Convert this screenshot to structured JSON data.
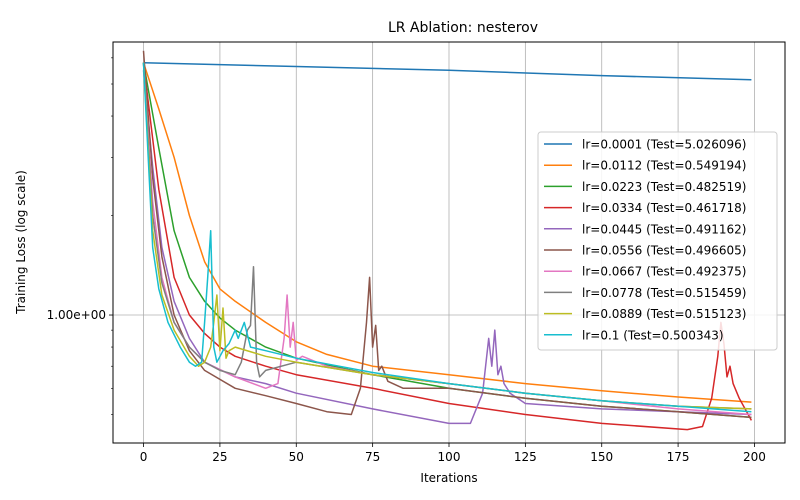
{
  "chart_data": {
    "type": "line",
    "title": "LR Ablation: nesterov",
    "xlabel": "Iterations",
    "ylabel": "Training Loss (log scale)",
    "xlim": [
      -10,
      210
    ],
    "ylim": [
      0.41,
      6.7
    ],
    "yscale": "log",
    "grid": true,
    "legend_position": "right",
    "x_ticks": [
      0,
      25,
      50,
      75,
      100,
      125,
      150,
      175,
      200
    ],
    "y_tick_label": "1.00e+00",
    "y_tick_value": 1.0,
    "y_minor_ticks": [
      0.5,
      0.6,
      0.7,
      0.8,
      0.9,
      2,
      3,
      4,
      5,
      6
    ],
    "series": [
      {
        "name": "lr=0.0001 (Test=5.026096)",
        "color": "#1f77b4",
        "x": [
          0,
          50,
          100,
          150,
          199
        ],
        "y": [
          5.8,
          5.65,
          5.5,
          5.3,
          5.15
        ]
      },
      {
        "name": "lr=0.0112 (Test=0.549194)",
        "color": "#ff7f0e",
        "x": [
          0,
          5,
          10,
          15,
          20,
          25,
          30,
          40,
          50,
          60,
          75,
          100,
          125,
          150,
          175,
          199
        ],
        "y": [
          5.8,
          4.2,
          3.0,
          2.0,
          1.45,
          1.2,
          1.1,
          0.95,
          0.83,
          0.76,
          0.7,
          0.66,
          0.62,
          0.59,
          0.565,
          0.545
        ]
      },
      {
        "name": "lr=0.0223 (Test=0.482519)",
        "color": "#2ca02c",
        "x": [
          0,
          5,
          10,
          15,
          20,
          25,
          30,
          40,
          50,
          75,
          100,
          125,
          150,
          175,
          199
        ],
        "y": [
          5.8,
          3.2,
          1.8,
          1.3,
          1.1,
          0.98,
          0.9,
          0.8,
          0.74,
          0.66,
          0.6,
          0.56,
          0.53,
          0.51,
          0.49
        ]
      },
      {
        "name": "lr=0.0334 (Test=0.461718)",
        "color": "#d62728",
        "x": [
          0,
          5,
          10,
          15,
          20,
          25,
          30,
          40,
          50,
          75,
          100,
          125,
          150,
          178,
          183,
          186,
          188,
          189,
          190,
          191,
          192,
          193,
          195,
          199
        ],
        "y": [
          5.8,
          2.4,
          1.3,
          1.0,
          0.88,
          0.8,
          0.75,
          0.7,
          0.66,
          0.6,
          0.54,
          0.5,
          0.47,
          0.45,
          0.46,
          0.56,
          0.75,
          0.95,
          0.82,
          0.65,
          0.7,
          0.62,
          0.56,
          0.48
        ]
      },
      {
        "name": "lr=0.0445 (Test=0.491162)",
        "color": "#9467bd",
        "x": [
          0,
          3,
          6,
          10,
          15,
          20,
          30,
          40,
          50,
          75,
          100,
          107,
          111,
          113,
          114,
          115,
          116,
          117,
          118,
          120,
          125,
          150,
          175,
          199
        ],
        "y": [
          5.5,
          2.8,
          1.6,
          1.1,
          0.85,
          0.72,
          0.65,
          0.62,
          0.58,
          0.52,
          0.47,
          0.47,
          0.58,
          0.85,
          0.7,
          0.9,
          0.66,
          0.7,
          0.62,
          0.58,
          0.54,
          0.52,
          0.51,
          0.5
        ]
      },
      {
        "name": "lr=0.0556 (Test=0.496605)",
        "color": "#8c564b",
        "x": [
          0,
          3,
          6,
          10,
          15,
          20,
          30,
          40,
          50,
          60,
          68,
          71,
          73,
          74,
          75,
          76,
          77,
          78,
          80,
          85,
          100,
          125,
          150,
          175,
          199
        ],
        "y": [
          6.3,
          2.6,
          1.5,
          1.0,
          0.78,
          0.68,
          0.6,
          0.57,
          0.54,
          0.51,
          0.5,
          0.6,
          0.95,
          1.3,
          0.8,
          0.93,
          0.68,
          0.7,
          0.63,
          0.6,
          0.6,
          0.56,
          0.53,
          0.51,
          0.49
        ]
      },
      {
        "name": "lr=0.0667 (Test=0.492375)",
        "color": "#e377c2",
        "x": [
          0,
          3,
          6,
          10,
          15,
          20,
          30,
          40,
          44,
          46,
          47,
          48,
          49,
          50,
          52,
          60,
          75,
          100,
          125,
          150,
          175,
          199
        ],
        "y": [
          5.8,
          2.2,
          1.3,
          0.95,
          0.8,
          0.72,
          0.65,
          0.6,
          0.62,
          0.85,
          1.15,
          0.8,
          0.95,
          0.73,
          0.75,
          0.7,
          0.66,
          0.62,
          0.58,
          0.55,
          0.52,
          0.5
        ]
      },
      {
        "name": "lr=0.0778 (Test=0.515459)",
        "color": "#7f7f7f",
        "x": [
          0,
          3,
          6,
          10,
          15,
          20,
          25,
          30,
          32,
          34,
          35,
          36,
          37,
          38,
          40,
          50,
          75,
          100,
          125,
          150,
          175,
          199
        ],
        "y": [
          5.8,
          2.0,
          1.25,
          0.95,
          0.8,
          0.72,
          0.68,
          0.66,
          0.72,
          0.9,
          0.93,
          1.4,
          0.72,
          0.65,
          0.68,
          0.72,
          0.66,
          0.62,
          0.58,
          0.55,
          0.53,
          0.52
        ]
      },
      {
        "name": "lr=0.0889 (Test=0.515123)",
        "color": "#bcbd22",
        "x": [
          0,
          3,
          6,
          10,
          15,
          18,
          20,
          22,
          23,
          24,
          25,
          26,
          27,
          28,
          30,
          40,
          50,
          75,
          100,
          125,
          150,
          175,
          199
        ],
        "y": [
          5.8,
          1.8,
          1.15,
          0.9,
          0.75,
          0.7,
          0.72,
          0.8,
          0.95,
          1.15,
          0.78,
          1.05,
          0.74,
          0.78,
          0.8,
          0.75,
          0.72,
          0.66,
          0.62,
          0.58,
          0.55,
          0.53,
          0.52
        ]
      },
      {
        "name": "lr=0.1 (Test=0.500343)",
        "color": "#17becf",
        "x": [
          0,
          3,
          5,
          8,
          12,
          15,
          17,
          19,
          20,
          21,
          22,
          23,
          24,
          26,
          28,
          30,
          31,
          33,
          35,
          40,
          50,
          75,
          100,
          125,
          150,
          175,
          199
        ],
        "y": [
          5.8,
          1.6,
          1.2,
          0.95,
          0.8,
          0.72,
          0.7,
          0.72,
          0.95,
          1.3,
          1.8,
          0.8,
          0.72,
          0.78,
          0.82,
          0.9,
          0.85,
          0.95,
          0.8,
          0.78,
          0.74,
          0.67,
          0.62,
          0.58,
          0.55,
          0.53,
          0.51
        ]
      }
    ]
  }
}
